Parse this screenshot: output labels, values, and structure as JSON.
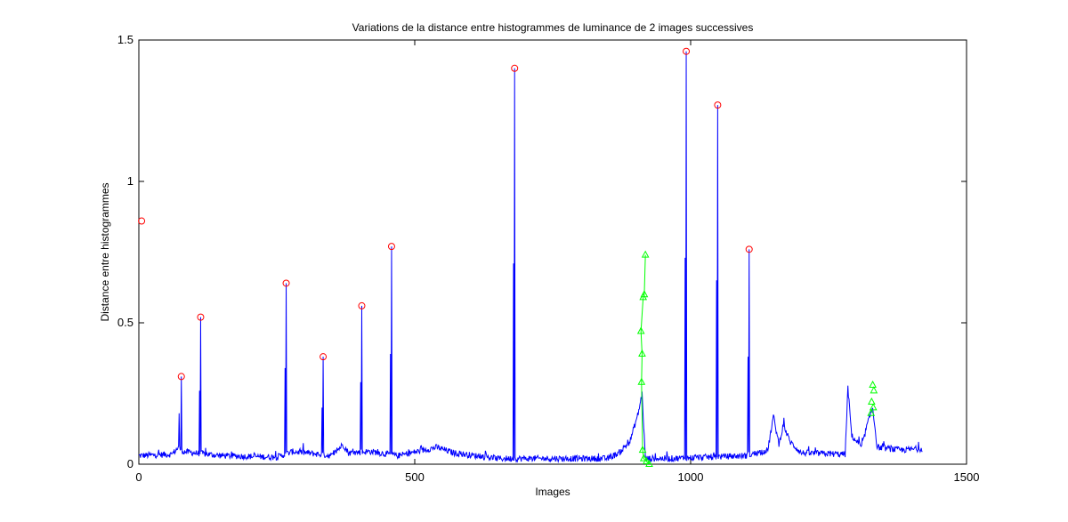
{
  "chart_data": {
    "type": "line",
    "title": "Variations de la distance entre histogrammes de luminance de 2 images successives",
    "xlabel": "Images",
    "ylabel": "Distance entre histogrammes",
    "xlim": [
      0,
      1500
    ],
    "ylim": [
      0,
      1.5
    ],
    "xticks": [
      0,
      500,
      1000,
      1500
    ],
    "yticks": [
      0,
      0.5,
      1,
      1.5
    ],
    "xtick_labels": [
      "0",
      "500",
      "1000",
      "1500"
    ],
    "ytick_labels": [
      "0",
      "0.5",
      "1",
      "1.5"
    ],
    "grid": false,
    "legend": "none",
    "colors": {
      "signal": "#0000ff",
      "peaks": "#ff0000",
      "gradual": "#00ff00"
    },
    "series": [
      {
        "kind": "signal",
        "x_range": [
          0,
          1420
        ],
        "baseline_segments": [
          [
            0,
            0.03
          ],
          [
            60,
            0.035
          ],
          [
            72,
            0.06
          ],
          [
            80,
            0.045
          ],
          [
            100,
            0.04
          ],
          [
            150,
            0.03
          ],
          [
            250,
            0.025
          ],
          [
            280,
            0.045
          ],
          [
            350,
            0.03
          ],
          [
            370,
            0.07
          ],
          [
            380,
            0.04
          ],
          [
            420,
            0.045
          ],
          [
            470,
            0.03
          ],
          [
            540,
            0.06
          ],
          [
            570,
            0.04
          ],
          [
            650,
            0.02
          ],
          [
            680,
            0.02
          ],
          [
            850,
            0.02
          ],
          [
            870,
            0.04
          ],
          [
            890,
            0.08
          ],
          [
            905,
            0.18
          ],
          [
            912,
            0.25
          ],
          [
            918,
            0.02
          ],
          [
            960,
            0.02
          ],
          [
            1100,
            0.03
          ],
          [
            1140,
            0.05
          ],
          [
            1150,
            0.17
          ],
          [
            1160,
            0.07
          ],
          [
            1168,
            0.14
          ],
          [
            1180,
            0.08
          ],
          [
            1200,
            0.04
          ],
          [
            1280,
            0.035
          ],
          [
            1285,
            0.27
          ],
          [
            1292,
            0.1
          ],
          [
            1310,
            0.06
          ],
          [
            1320,
            0.14
          ],
          [
            1330,
            0.2
          ],
          [
            1338,
            0.06
          ],
          [
            1380,
            0.05
          ],
          [
            1420,
            0.055
          ]
        ],
        "spikes": [
          [
            73,
            0.18
          ],
          [
            77,
            0.31
          ],
          [
            110,
            0.26
          ],
          [
            112,
            0.52
          ],
          [
            265,
            0.34
          ],
          [
            267,
            0.64
          ],
          [
            332,
            0.2
          ],
          [
            334,
            0.38
          ],
          [
            402,
            0.29
          ],
          [
            404,
            0.56
          ],
          [
            456,
            0.39
          ],
          [
            458,
            0.77
          ],
          [
            679,
            0.71
          ],
          [
            681,
            1.4
          ],
          [
            990,
            0.73
          ],
          [
            992,
            1.46
          ],
          [
            1047,
            0.65
          ],
          [
            1049,
            1.27
          ],
          [
            1104,
            0.38
          ],
          [
            1106,
            0.76
          ]
        ]
      },
      {
        "kind": "peaks",
        "marker": "circle",
        "points": [
          [
            5,
            0.86
          ],
          [
            77,
            0.31
          ],
          [
            112,
            0.52
          ],
          [
            267,
            0.64
          ],
          [
            334,
            0.38
          ],
          [
            404,
            0.56
          ],
          [
            458,
            0.77
          ],
          [
            681,
            1.4
          ],
          [
            992,
            1.46
          ],
          [
            1049,
            1.27
          ],
          [
            1106,
            0.76
          ]
        ]
      },
      {
        "kind": "gradual",
        "marker": "triangle",
        "points": [
          [
            918,
            0.74
          ],
          [
            916,
            0.6
          ],
          [
            914,
            0.59
          ],
          [
            910,
            0.47
          ],
          [
            912,
            0.39
          ],
          [
            911,
            0.29
          ],
          [
            913,
            0.05
          ],
          [
            915,
            0.02
          ],
          [
            920,
            0.01
          ],
          [
            925,
            0.0
          ],
          [
            1330,
            0.28
          ],
          [
            1332,
            0.26
          ],
          [
            1328,
            0.22
          ],
          [
            1331,
            0.2
          ],
          [
            1327,
            0.18
          ]
        ]
      }
    ]
  }
}
